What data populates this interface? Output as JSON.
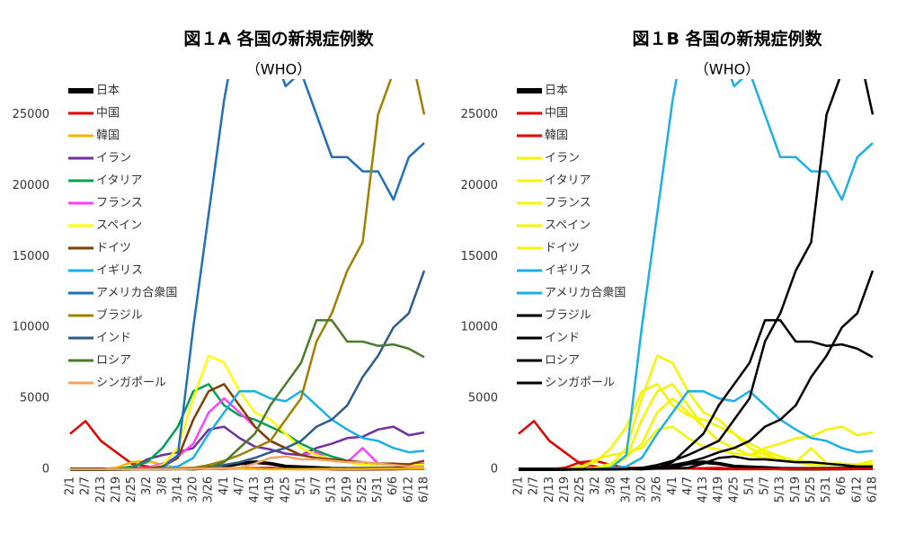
{
  "chart_data": [
    {
      "type": "line",
      "title": "図１A 各国の新規症例数",
      "subtitle": "（WHO）",
      "categories": [
        "2/1",
        "2/7",
        "2/13",
        "2/19",
        "2/25",
        "3/2",
        "3/8",
        "3/14",
        "3/20",
        "3/26",
        "4/1",
        "4/7",
        "4/13",
        "4/19",
        "4/25",
        "5/1",
        "5/7",
        "5/13",
        "5/19",
        "5/25",
        "5/31",
        "6/6",
        "6/12",
        "6/18"
      ],
      "ylim": [
        0,
        27500
      ],
      "yticks": [
        0,
        5000,
        10000,
        15000,
        20000,
        25000
      ],
      "legend": "upper-left",
      "series": [
        {
          "name": "日本",
          "color": "#000000",
          "values": [
            0,
            0,
            0,
            10,
            20,
            40,
            30,
            60,
            40,
            100,
            200,
            400,
            500,
            400,
            200,
            150,
            100,
            50,
            30,
            30,
            40,
            50,
            60,
            70
          ]
        },
        {
          "name": "中国",
          "color": "#e00000",
          "values": [
            2500,
            3400,
            2000,
            1200,
            400,
            200,
            40,
            20,
            30,
            50,
            40,
            60,
            80,
            100,
            20,
            10,
            10,
            10,
            10,
            10,
            10,
            10,
            20,
            20
          ]
        },
        {
          "name": "韓国",
          "color": "#f0b400",
          "values": [
            0,
            0,
            0,
            100,
            500,
            600,
            300,
            100,
            100,
            100,
            80,
            50,
            30,
            10,
            10,
            10,
            20,
            30,
            20,
            20,
            40,
            50,
            40,
            50
          ]
        },
        {
          "name": "イラン",
          "color": "#7030a0",
          "values": [
            0,
            0,
            0,
            0,
            50,
            700,
            1000,
            1200,
            1500,
            2800,
            3000,
            2200,
            1600,
            1400,
            1100,
            1000,
            1500,
            1800,
            2200,
            2300,
            2800,
            3000,
            2400,
            2600
          ]
        },
        {
          "name": "イタリア",
          "color": "#00a050",
          "values": [
            0,
            0,
            0,
            0,
            200,
            500,
            1500,
            3000,
            5500,
            6000,
            4500,
            3800,
            3500,
            3000,
            2500,
            1800,
            1300,
            900,
            600,
            500,
            350,
            300,
            250,
            300
          ]
        },
        {
          "name": "フランス",
          "color": "#ff40ff",
          "values": [
            0,
            0,
            0,
            0,
            0,
            100,
            400,
            900,
            1800,
            4000,
            5000,
            4000,
            3000,
            2000,
            1500,
            1000,
            1200,
            600,
            500,
            1500,
            400,
            300,
            300,
            400
          ]
        },
        {
          "name": "スペイン",
          "color": "#ffff00",
          "values": [
            0,
            0,
            0,
            0,
            0,
            20,
            300,
            1500,
            5000,
            8000,
            7500,
            5500,
            4000,
            3500,
            2500,
            1500,
            1000,
            700,
            500,
            300,
            300,
            300,
            300,
            300
          ]
        },
        {
          "name": "ドイツ",
          "color": "#7f3f00",
          "values": [
            0,
            0,
            0,
            0,
            0,
            50,
            200,
            800,
            3500,
            5500,
            6000,
            4500,
            3000,
            2000,
            1500,
            1000,
            800,
            700,
            600,
            500,
            400,
            400,
            350,
            600
          ]
        },
        {
          "name": "イギリス",
          "color": "#1ab0e8",
          "values": [
            0,
            0,
            0,
            0,
            0,
            10,
            50,
            200,
            800,
            2500,
            4000,
            5500,
            5500,
            5000,
            4800,
            5500,
            4500,
            3500,
            2800,
            2200,
            2000,
            1500,
            1200,
            1300
          ]
        },
        {
          "name": "アメリカ合衆国",
          "color": "#1f6fba",
          "values": [
            0,
            0,
            0,
            0,
            0,
            20,
            100,
            1000,
            10000,
            18000,
            26000,
            32000,
            28000,
            30000,
            27000,
            28000,
            25000,
            22000,
            22000,
            21000,
            21000,
            19000,
            22000,
            23000
          ]
        },
        {
          "name": "ブラジル",
          "color": "#a08000",
          "values": [
            0,
            0,
            0,
            0,
            0,
            0,
            0,
            20,
            100,
            300,
            600,
            1000,
            1500,
            2000,
            3500,
            5000,
            9000,
            11000,
            14000,
            16000,
            25000,
            28000,
            30000,
            25000
          ]
        },
        {
          "name": "インド",
          "color": "#2e5c8a",
          "values": [
            0,
            0,
            0,
            0,
            0,
            0,
            10,
            20,
            50,
            100,
            300,
            500,
            800,
            1200,
            1500,
            2000,
            3000,
            3500,
            4500,
            6500,
            8000,
            10000,
            11000,
            14000
          ]
        },
        {
          "name": "ロシア",
          "color": "#4a7a2a",
          "values": [
            0,
            0,
            0,
            0,
            0,
            0,
            0,
            10,
            30,
            100,
            500,
            1500,
            2500,
            4500,
            6000,
            7500,
            10500,
            10500,
            9000,
            9000,
            8700,
            8800,
            8500,
            7900
          ]
        },
        {
          "name": "シンガポール",
          "color": "#f4a460",
          "values": [
            0,
            0,
            0,
            0,
            0,
            0,
            10,
            10,
            30,
            50,
            80,
            100,
            400,
            800,
            900,
            700,
            700,
            600,
            500,
            500,
            400,
            300,
            200,
            200
          ]
        }
      ]
    },
    {
      "type": "line",
      "title": "図１B 各国の新規症例数",
      "subtitle": "（WHO）",
      "categories": [
        "2/1",
        "2/7",
        "2/13",
        "2/19",
        "2/25",
        "3/2",
        "3/8",
        "3/14",
        "3/20",
        "3/26",
        "4/1",
        "4/7",
        "4/13",
        "4/19",
        "4/25",
        "5/1",
        "5/7",
        "5/13",
        "5/19",
        "5/25",
        "5/31",
        "6/6",
        "6/12",
        "6/18"
      ],
      "ylim": [
        0,
        27500
      ],
      "yticks": [
        0,
        5000,
        10000,
        15000,
        20000,
        25000
      ],
      "legend": "upper-left",
      "series": [
        {
          "name": "日本",
          "color": "#000000",
          "values": [
            0,
            0,
            0,
            10,
            20,
            40,
            30,
            60,
            40,
            100,
            200,
            400,
            500,
            400,
            200,
            150,
            100,
            50,
            30,
            30,
            40,
            50,
            60,
            70
          ]
        },
        {
          "name": "中国",
          "color": "#e00000",
          "values": [
            2500,
            3400,
            2000,
            1200,
            400,
            200,
            40,
            20,
            30,
            50,
            40,
            60,
            80,
            100,
            20,
            10,
            10,
            10,
            10,
            10,
            10,
            10,
            20,
            20
          ]
        },
        {
          "name": "韓国",
          "color": "#e00000",
          "values": [
            0,
            0,
            0,
            100,
            500,
            600,
            300,
            100,
            100,
            100,
            80,
            50,
            30,
            10,
            10,
            10,
            20,
            30,
            20,
            20,
            40,
            50,
            40,
            50
          ]
        },
        {
          "name": "イラン",
          "color": "#f5f500",
          "values": [
            0,
            0,
            0,
            0,
            50,
            700,
            1000,
            1200,
            1500,
            2800,
            3000,
            2200,
            1600,
            1400,
            1100,
            1000,
            1500,
            1800,
            2200,
            2300,
            2800,
            3000,
            2400,
            2600
          ]
        },
        {
          "name": "イタリア",
          "color": "#f5f500",
          "values": [
            0,
            0,
            0,
            0,
            200,
            500,
            1500,
            3000,
            5500,
            6000,
            4500,
            3800,
            3500,
            3000,
            2500,
            1800,
            1300,
            900,
            600,
            500,
            350,
            300,
            250,
            300
          ]
        },
        {
          "name": "フランス",
          "color": "#f5f500",
          "values": [
            0,
            0,
            0,
            0,
            0,
            100,
            400,
            900,
            1800,
            4000,
            5000,
            4000,
            3000,
            2000,
            1500,
            1000,
            1200,
            600,
            500,
            1500,
            400,
            300,
            300,
            400
          ]
        },
        {
          "name": "スペイン",
          "color": "#f5f500",
          "values": [
            0,
            0,
            0,
            0,
            0,
            20,
            300,
            1500,
            5000,
            8000,
            7500,
            5500,
            4000,
            3500,
            2500,
            1500,
            1000,
            700,
            500,
            300,
            300,
            300,
            300,
            300
          ]
        },
        {
          "name": "ドイツ",
          "color": "#f5f500",
          "values": [
            0,
            0,
            0,
            0,
            0,
            50,
            200,
            800,
            3500,
            5500,
            6000,
            4500,
            3000,
            2000,
            1500,
            1000,
            800,
            700,
            600,
            500,
            400,
            400,
            350,
            600
          ]
        },
        {
          "name": "イギリス",
          "color": "#1ab0e8",
          "values": [
            0,
            0,
            0,
            0,
            0,
            10,
            50,
            200,
            800,
            2500,
            4000,
            5500,
            5500,
            5000,
            4800,
            5500,
            4500,
            3500,
            2800,
            2200,
            2000,
            1500,
            1200,
            1300
          ]
        },
        {
          "name": "アメリカ合衆国",
          "color": "#1ab0e8",
          "values": [
            0,
            0,
            0,
            0,
            0,
            20,
            100,
            1000,
            10000,
            18000,
            26000,
            32000,
            28000,
            30000,
            27000,
            28000,
            25000,
            22000,
            22000,
            21000,
            21000,
            19000,
            22000,
            23000
          ]
        },
        {
          "name": "ブラジル",
          "color": "#000000",
          "values": [
            0,
            0,
            0,
            0,
            0,
            0,
            0,
            20,
            100,
            300,
            600,
            1000,
            1500,
            2000,
            3500,
            5000,
            9000,
            11000,
            14000,
            16000,
            25000,
            28000,
            30000,
            25000
          ]
        },
        {
          "name": "インド",
          "color": "#000000",
          "values": [
            0,
            0,
            0,
            0,
            0,
            0,
            10,
            20,
            50,
            100,
            300,
            500,
            800,
            1200,
            1500,
            2000,
            3000,
            3500,
            4500,
            6500,
            8000,
            10000,
            11000,
            14000
          ]
        },
        {
          "name": "ロシア",
          "color": "#000000",
          "values": [
            0,
            0,
            0,
            0,
            0,
            0,
            0,
            10,
            30,
            100,
            500,
            1500,
            2500,
            4500,
            6000,
            7500,
            10500,
            10500,
            9000,
            9000,
            8700,
            8800,
            8500,
            7900
          ]
        },
        {
          "name": "シンガポール",
          "color": "#000000",
          "values": [
            0,
            0,
            0,
            0,
            0,
            0,
            10,
            10,
            30,
            50,
            80,
            100,
            400,
            800,
            900,
            700,
            700,
            600,
            500,
            500,
            400,
            300,
            200,
            200
          ]
        }
      ]
    }
  ]
}
